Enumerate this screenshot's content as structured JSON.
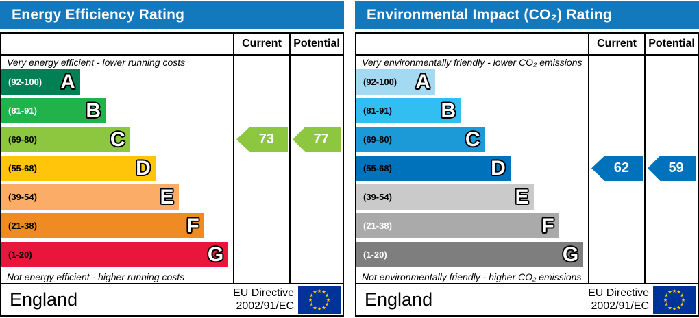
{
  "colors": {
    "header_bar": "#1478bd",
    "border": "#000000",
    "eu_flag_field": "#003399",
    "eu_flag_stars": "#ffcc00"
  },
  "panels": [
    {
      "title": "Energy Efficiency Rating",
      "columns": {
        "current": "Current",
        "potential": "Potential"
      },
      "top_note": "Very energy efficient - lower running costs",
      "bottom_note": "Not energy efficient - higher running costs",
      "bands": [
        {
          "letter": "A",
          "range": "(92-100)",
          "color": "#008054",
          "text_color": "#ffffff",
          "width_pct": 34
        },
        {
          "letter": "B",
          "range": "(81-91)",
          "color": "#21b24c",
          "text_color": "#ffffff",
          "width_pct": 45
        },
        {
          "letter": "C",
          "range": "(69-80)",
          "color": "#8dc63f",
          "text_color": "#000000",
          "width_pct": 55.5
        },
        {
          "letter": "D",
          "range": "(55-68)",
          "color": "#ffc50a",
          "text_color": "#000000",
          "width_pct": 66.5
        },
        {
          "letter": "E",
          "range": "(39-54)",
          "color": "#fbac66",
          "text_color": "#000000",
          "width_pct": 76.5
        },
        {
          "letter": "F",
          "range": "(21-38)",
          "color": "#f08b24",
          "text_color": "#000000",
          "width_pct": 87.5
        },
        {
          "letter": "G",
          "range": "(1-20)",
          "color": "#e9153b",
          "text_color": "#000000",
          "width_pct": 98
        }
      ],
      "current": {
        "value": "73",
        "band_index": 2,
        "color": "#8dc63f"
      },
      "potential": {
        "value": "77",
        "band_index": 2,
        "color": "#8dc63f"
      },
      "footer": {
        "region": "England",
        "directive_line1": "EU Directive",
        "directive_line2": "2002/91/EC"
      }
    },
    {
      "title": "Environmental Impact (CO₂) Rating",
      "columns": {
        "current": "Current",
        "potential": "Potential"
      },
      "top_note": "Very environmentally friendly - lower CO₂ emissions",
      "bottom_note": "Not environmentally friendly - higher CO₂ emissions",
      "bands": [
        {
          "letter": "A",
          "range": "(92-100)",
          "color": "#a3daf2",
          "text_color": "#000000",
          "width_pct": 34
        },
        {
          "letter": "B",
          "range": "(81-91)",
          "color": "#33bef2",
          "text_color": "#000000",
          "width_pct": 45
        },
        {
          "letter": "C",
          "range": "(69-80)",
          "color": "#1b9ad7",
          "text_color": "#000000",
          "width_pct": 55.5
        },
        {
          "letter": "D",
          "range": "(55-68)",
          "color": "#0072bc",
          "text_color": "#000000",
          "width_pct": 66.5
        },
        {
          "letter": "E",
          "range": "(39-54)",
          "color": "#cacaca",
          "text_color": "#000000",
          "width_pct": 76.5
        },
        {
          "letter": "F",
          "range": "(21-38)",
          "color": "#aaaaaa",
          "text_color": "#ffffff",
          "width_pct": 87.5
        },
        {
          "letter": "G",
          "range": "(1-20)",
          "color": "#7e7e7e",
          "text_color": "#ffffff",
          "width_pct": 98
        }
      ],
      "current": {
        "value": "62",
        "band_index": 3,
        "color": "#0072bc"
      },
      "potential": {
        "value": "59",
        "band_index": 3,
        "color": "#0072bc"
      },
      "footer": {
        "region": "England",
        "directive_line1": "EU Directive",
        "directive_line2": "2002/91/EC"
      }
    }
  ],
  "chart_data": [
    {
      "type": "bar",
      "title": "Energy Efficiency Rating",
      "categories": [
        "A",
        "B",
        "C",
        "D",
        "E",
        "F",
        "G"
      ],
      "band_ranges": [
        "92-100",
        "81-91",
        "69-80",
        "55-68",
        "39-54",
        "21-38",
        "1-20"
      ],
      "band_colors": [
        "#008054",
        "#21b24c",
        "#8dc63f",
        "#ffc50a",
        "#fbac66",
        "#f08b24",
        "#e9153b"
      ],
      "band_bar_width_pct": [
        34,
        45,
        55.5,
        66.5,
        76.5,
        87.5,
        98
      ],
      "current": 73,
      "current_band": "C",
      "potential": 77,
      "potential_band": "C",
      "top_note": "Very energy efficient - lower running costs",
      "bottom_note": "Not energy efficient - higher running costs",
      "region": "England",
      "directive": "EU Directive 2002/91/EC"
    },
    {
      "type": "bar",
      "title": "Environmental Impact (CO₂) Rating",
      "categories": [
        "A",
        "B",
        "C",
        "D",
        "E",
        "F",
        "G"
      ],
      "band_ranges": [
        "92-100",
        "81-91",
        "69-80",
        "55-68",
        "39-54",
        "21-38",
        "1-20"
      ],
      "band_colors": [
        "#a3daf2",
        "#33bef2",
        "#1b9ad7",
        "#0072bc",
        "#cacaca",
        "#aaaaaa",
        "#7e7e7e"
      ],
      "band_bar_width_pct": [
        34,
        45,
        55.5,
        66.5,
        76.5,
        87.5,
        98
      ],
      "current": 62,
      "current_band": "D",
      "potential": 59,
      "potential_band": "D",
      "top_note": "Very environmentally friendly - lower CO₂ emissions",
      "bottom_note": "Not environmentally friendly - higher CO₂ emissions",
      "region": "England",
      "directive": "EU Directive 2002/91/EC"
    }
  ]
}
